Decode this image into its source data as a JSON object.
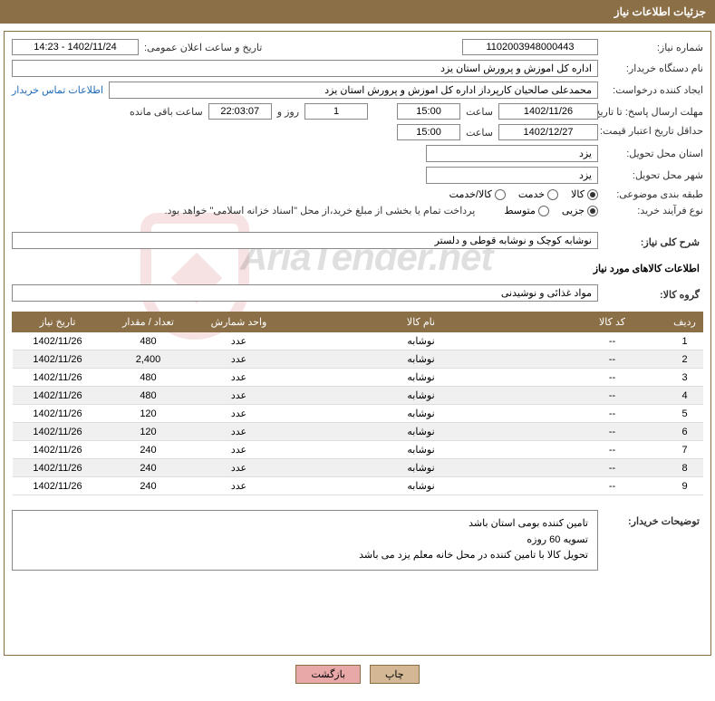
{
  "header": {
    "title": "جزئیات اطلاعات نیاز"
  },
  "fields": {
    "request_number_label": "شماره نیاز:",
    "request_number": "1102003948000443",
    "announce_datetime_label": "تاریخ و ساعت اعلان عمومی:",
    "announce_datetime": "1402/11/24 - 14:23",
    "buyer_org_label": "نام دستگاه خریدار:",
    "buyer_org": "اداره کل اموزش و پرورش استان یزد",
    "requester_label": "ایجاد کننده درخواست:",
    "requester": "محمدعلی صالحیان کارپرداز اداره کل اموزش و پرورش استان یزد",
    "contact_link": "اطلاعات تماس خریدار",
    "deadline_reply_label": "مهلت ارسال پاسخ: تا تاریخ:",
    "deadline_reply_date": "1402/11/26",
    "time_label": "ساعت",
    "deadline_reply_time": "15:00",
    "days_count": "1",
    "days_and_label": "روز و",
    "countdown": "22:03:07",
    "remaining_label": "ساعت باقی مانده",
    "price_valid_label": "حداقل تاریخ اعتبار قیمت: تا تاریخ:",
    "price_valid_date": "1402/12/27",
    "price_valid_time": "15:00",
    "delivery_province_label": "استان محل تحویل:",
    "delivery_province": "یزد",
    "delivery_city_label": "شهر محل تحویل:",
    "delivery_city": "یزد",
    "category_label": "طبقه بندی موضوعی:",
    "kala": "کالا",
    "khedmat": "خدمت",
    "kala_khedmat": "کالا/خدمت",
    "process_type_label": "نوع فرآیند خرید:",
    "jozei": "جزیی",
    "motvaset": "متوسط",
    "payment_note": "پرداخت تمام یا بخشی از مبلغ خرید،از محل \"اسناد خزانه اسلامی\" خواهد بود.",
    "general_desc_label": "شرح کلی نیاز:",
    "general_desc": "نوشابه کوچک و نوشابه قوطی و دلستر",
    "goods_info_title": "اطلاعات کالاهای مورد نیاز",
    "goods_group_label": "گروه کالا:",
    "goods_group": "مواد غذائی و نوشیدنی",
    "buyer_notes_label": "توضیحات خریدار:",
    "buyer_notes_l1": "تامین کننده بومی استان باشد",
    "buyer_notes_l2": "تسویه 60 روزه",
    "buyer_notes_l3": "تحویل کالا با تامین کننده در محل خانه معلم یزد می باشد"
  },
  "table": {
    "columns": [
      "ردیف",
      "کد کالا",
      "نام کالا",
      "واحد شمارش",
      "تعداد / مقدار",
      "تاریخ نیاز"
    ],
    "col_widths": [
      "40px",
      "120px",
      "auto",
      "100px",
      "100px",
      "100px"
    ],
    "header_bg": "#8b6f47",
    "header_fg": "#ffffff",
    "row_alt_bg": "#f0f0f0",
    "rows": [
      [
        "1",
        "--",
        "نوشابه",
        "عدد",
        "480",
        "1402/11/26"
      ],
      [
        "2",
        "--",
        "نوشابه",
        "عدد",
        "2,400",
        "1402/11/26"
      ],
      [
        "3",
        "--",
        "نوشابه",
        "عدد",
        "480",
        "1402/11/26"
      ],
      [
        "4",
        "--",
        "نوشابه",
        "عدد",
        "480",
        "1402/11/26"
      ],
      [
        "5",
        "--",
        "نوشابه",
        "عدد",
        "120",
        "1402/11/26"
      ],
      [
        "6",
        "--",
        "نوشابه",
        "عدد",
        "120",
        "1402/11/26"
      ],
      [
        "7",
        "--",
        "نوشابه",
        "عدد",
        "240",
        "1402/11/26"
      ],
      [
        "8",
        "--",
        "نوشابه",
        "عدد",
        "240",
        "1402/11/26"
      ],
      [
        "9",
        "--",
        "نوشابه",
        "عدد",
        "240",
        "1402/11/26"
      ]
    ]
  },
  "buttons": {
    "print": "چاپ",
    "back": "بازگشت"
  },
  "colors": {
    "brand": "#8b6f47",
    "link": "#1e6bb8",
    "btn_primary_bg": "#d4b896",
    "btn_secondary_bg": "#e8a8a8",
    "watermark_red": "#c43c3c"
  },
  "watermark": {
    "text": "AriaTender.net"
  }
}
